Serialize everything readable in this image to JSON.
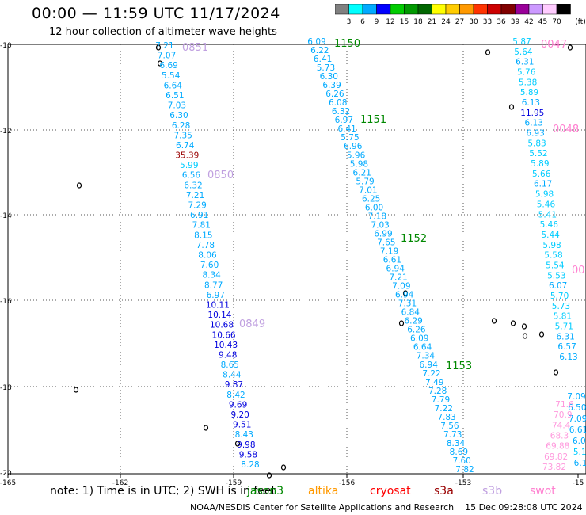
{
  "title": "00:00 — 11:59 UTC 11/17/2024",
  "subtitle": "12 hour collection of altimeter wave heights",
  "colorbar": {
    "unit": "(ft)",
    "labels": [
      "3",
      "6",
      "9",
      "12",
      "15",
      "18",
      "21",
      "24",
      "27",
      "30",
      "33",
      "36",
      "39",
      "42",
      "45",
      "70"
    ],
    "colors": [
      "#808080",
      "#00ffff",
      "#00aaff",
      "#0000ff",
      "#00cc00",
      "#009900",
      "#006600",
      "#ffff00",
      "#ffcc00",
      "#ff9900",
      "#ff3300",
      "#cc0000",
      "#800000",
      "#990099",
      "#cc99ff",
      "#ffccff",
      "#000000"
    ]
  },
  "axes": {
    "x_ticks": [
      "-165",
      "-162",
      "-159",
      "-156",
      "-153",
      "-15"
    ],
    "y_ticks": [
      "-10",
      "-12",
      "-14",
      "-16",
      "-18",
      "-20"
    ]
  },
  "passes": [
    {
      "label": "0851",
      "color": "#c0a0e0"
    },
    {
      "label": "0850",
      "color": "#c0a0e0"
    },
    {
      "label": "0849",
      "color": "#c0a0e0"
    },
    {
      "label": "1150",
      "color": "#008800"
    },
    {
      "label": "1151",
      "color": "#008800"
    },
    {
      "label": "1152",
      "color": "#008800"
    },
    {
      "label": "1153",
      "color": "#008800"
    },
    {
      "label": "0047",
      "color": "#ff80d0"
    },
    {
      "label": "0048",
      "color": "#ff80d0"
    },
    {
      "label": "00",
      "color": "#ff80d0"
    }
  ],
  "tracks": [
    {
      "name": "track-1",
      "values": [
        {
          "v": "7.21",
          "c": "#00aaff"
        },
        {
          "v": "7.07",
          "c": "#00aaff"
        },
        {
          "v": "6.69",
          "c": "#00aaff"
        },
        {
          "v": "5.54",
          "c": "#00aaff"
        },
        {
          "v": "6.64",
          "c": "#00aaff"
        },
        {
          "v": "6.51",
          "c": "#00aaff"
        },
        {
          "v": "7.03",
          "c": "#00aaff"
        },
        {
          "v": "6.30",
          "c": "#00aaff"
        },
        {
          "v": "6.28",
          "c": "#00aaff"
        },
        {
          "v": "7.35",
          "c": "#00aaff"
        },
        {
          "v": "6.74",
          "c": "#00aaff"
        },
        {
          "v": "35.39",
          "c": "#990000"
        },
        {
          "v": "5.99",
          "c": "#00ccff"
        },
        {
          "v": "6.56",
          "c": "#00aaff"
        },
        {
          "v": "6.32",
          "c": "#00aaff"
        },
        {
          "v": "7.21",
          "c": "#00aaff"
        },
        {
          "v": "7.29",
          "c": "#00aaff"
        },
        {
          "v": "6.91",
          "c": "#00aaff"
        },
        {
          "v": "7.81",
          "c": "#00aaff"
        },
        {
          "v": "8.15",
          "c": "#00aaff"
        },
        {
          "v": "7.78",
          "c": "#00aaff"
        },
        {
          "v": "8.06",
          "c": "#00aaff"
        },
        {
          "v": "7.60",
          "c": "#00aaff"
        },
        {
          "v": "8.34",
          "c": "#00aaff"
        },
        {
          "v": "8.77",
          "c": "#00aaff"
        },
        {
          "v": "6.97",
          "c": "#00aaff"
        },
        {
          "v": "10.11",
          "c": "#0000dd"
        },
        {
          "v": "10.14",
          "c": "#0000dd"
        },
        {
          "v": "10.68",
          "c": "#0000dd"
        },
        {
          "v": "10.66",
          "c": "#0000dd"
        },
        {
          "v": "10.43",
          "c": "#0000dd"
        },
        {
          "v": "9.48",
          "c": "#0000dd"
        },
        {
          "v": "8.65",
          "c": "#00aaff"
        },
        {
          "v": "8.44",
          "c": "#00aaff"
        },
        {
          "v": "9.87",
          "c": "#0000dd"
        },
        {
          "v": "8.42",
          "c": "#00aaff"
        },
        {
          "v": "9.69",
          "c": "#0000dd"
        },
        {
          "v": "9.20",
          "c": "#0000dd"
        },
        {
          "v": "9.51",
          "c": "#0000dd"
        },
        {
          "v": "8.43",
          "c": "#00aaff"
        },
        {
          "v": "9.98",
          "c": "#0000dd"
        },
        {
          "v": "9.58",
          "c": "#0000dd"
        },
        {
          "v": "8.28",
          "c": "#00aaff"
        }
      ]
    },
    {
      "name": "track-2",
      "values": [
        {
          "v": "6.09",
          "c": "#00aaff"
        },
        {
          "v": "6.22",
          "c": "#00aaff"
        },
        {
          "v": "6.41",
          "c": "#00aaff"
        },
        {
          "v": "5.73",
          "c": "#00aaff"
        },
        {
          "v": "6.30",
          "c": "#00aaff"
        },
        {
          "v": "6.39",
          "c": "#00aaff"
        },
        {
          "v": "6.26",
          "c": "#00aaff"
        },
        {
          "v": "6.08",
          "c": "#00aaff"
        },
        {
          "v": "6.32",
          "c": "#00aaff"
        },
        {
          "v": "6.97",
          "c": "#00aaff"
        },
        {
          "v": "6.41",
          "c": "#00aaff"
        },
        {
          "v": "5.75",
          "c": "#00aaff"
        },
        {
          "v": "6.96",
          "c": "#00aaff"
        },
        {
          "v": "5.96",
          "c": "#00aaff"
        },
        {
          "v": "5.98",
          "c": "#00aaff"
        },
        {
          "v": "6.21",
          "c": "#00aaff"
        },
        {
          "v": "5.79",
          "c": "#00aaff"
        },
        {
          "v": "7.01",
          "c": "#00aaff"
        },
        {
          "v": "6.25",
          "c": "#00aaff"
        },
        {
          "v": "6.00",
          "c": "#00aaff"
        },
        {
          "v": "7.18",
          "c": "#00aaff"
        },
        {
          "v": "7.03",
          "c": "#00aaff"
        },
        {
          "v": "6.99",
          "c": "#00aaff"
        },
        {
          "v": "7.65",
          "c": "#00aaff"
        },
        {
          "v": "7.19",
          "c": "#00aaff"
        },
        {
          "v": "6.61",
          "c": "#00aaff"
        },
        {
          "v": "6.94",
          "c": "#00aaff"
        },
        {
          "v": "7.21",
          "c": "#00aaff"
        },
        {
          "v": "7.09",
          "c": "#00aaff"
        },
        {
          "v": "6.94",
          "c": "#00aaff"
        },
        {
          "v": "7.31",
          "c": "#00aaff"
        },
        {
          "v": "6.84",
          "c": "#00aaff"
        },
        {
          "v": "6.29",
          "c": "#00aaff"
        },
        {
          "v": "6.26",
          "c": "#00aaff"
        },
        {
          "v": "6.09",
          "c": "#00aaff"
        },
        {
          "v": "6.64",
          "c": "#00aaff"
        },
        {
          "v": "7.34",
          "c": "#00aaff"
        },
        {
          "v": "6.94",
          "c": "#00aaff"
        },
        {
          "v": "7.22",
          "c": "#00aaff"
        },
        {
          "v": "7.49",
          "c": "#00aaff"
        },
        {
          "v": "7.28",
          "c": "#00aaff"
        },
        {
          "v": "7.79",
          "c": "#00aaff"
        },
        {
          "v": "7.22",
          "c": "#00aaff"
        },
        {
          "v": "7.83",
          "c": "#00aaff"
        },
        {
          "v": "7.56",
          "c": "#00aaff"
        },
        {
          "v": "7.73",
          "c": "#00aaff"
        },
        {
          "v": "8.34",
          "c": "#00aaff"
        },
        {
          "v": "8.69",
          "c": "#00aaff"
        },
        {
          "v": "7.60",
          "c": "#00aaff"
        },
        {
          "v": "7.82",
          "c": "#00aaff"
        }
      ]
    },
    {
      "name": "track-3",
      "values": [
        {
          "v": "5.87",
          "c": "#00ccff"
        },
        {
          "v": "5.64",
          "c": "#00ccff"
        },
        {
          "v": "6.31",
          "c": "#00aaff"
        },
        {
          "v": "5.76",
          "c": "#00ccff"
        },
        {
          "v": "5.38",
          "c": "#00ccff"
        },
        {
          "v": "5.89",
          "c": "#00ccff"
        },
        {
          "v": "6.13",
          "c": "#00aaff"
        },
        {
          "v": "11.95",
          "c": "#0000dd"
        },
        {
          "v": "6.13",
          "c": "#00aaff"
        },
        {
          "v": "6.93",
          "c": "#00aaff"
        },
        {
          "v": "5.83",
          "c": "#00ccff"
        },
        {
          "v": "5.52",
          "c": "#00ccff"
        },
        {
          "v": "5.89",
          "c": "#00ccff"
        },
        {
          "v": "5.66",
          "c": "#00ccff"
        },
        {
          "v": "6.17",
          "c": "#00aaff"
        },
        {
          "v": "5.98",
          "c": "#00ccff"
        },
        {
          "v": "5.46",
          "c": "#00ccff"
        },
        {
          "v": "5.41",
          "c": "#00ccff"
        },
        {
          "v": "5.46",
          "c": "#00ccff"
        },
        {
          "v": "5.44",
          "c": "#00ccff"
        },
        {
          "v": "5.98",
          "c": "#00ccff"
        },
        {
          "v": "5.58",
          "c": "#00ccff"
        },
        {
          "v": "5.54",
          "c": "#00ccff"
        },
        {
          "v": "5.53",
          "c": "#00ccff"
        },
        {
          "v": "6.07",
          "c": "#00aaff"
        },
        {
          "v": "5.70",
          "c": "#00ccff"
        },
        {
          "v": "5.73",
          "c": "#00ccff"
        },
        {
          "v": "5.81",
          "c": "#00ccff"
        },
        {
          "v": "5.71",
          "c": "#00ccff"
        },
        {
          "v": "6.31",
          "c": "#00aaff"
        },
        {
          "v": "6.57",
          "c": "#00aaff"
        },
        {
          "v": "6.13",
          "c": "#00aaff"
        }
      ]
    },
    {
      "name": "track-4",
      "values": [
        {
          "v": "7.09",
          "c": "#00aaff"
        },
        {
          "v": "6.50",
          "c": "#00aaff"
        },
        {
          "v": "7.09",
          "c": "#00aaff"
        },
        {
          "v": "6.61",
          "c": "#00aaff"
        },
        {
          "v": "6.0",
          "c": "#00aaff"
        },
        {
          "v": "5.1",
          "c": "#00ccff"
        },
        {
          "v": "6.1",
          "c": "#00aaff"
        }
      ]
    },
    {
      "name": "track-5",
      "values": [
        {
          "v": "71.6",
          "c": "#ff99dd"
        },
        {
          "v": "70.9",
          "c": "#ff99dd"
        },
        {
          "v": "74.4",
          "c": "#ff99dd"
        },
        {
          "v": "68.3",
          "c": "#ff99dd"
        },
        {
          "v": "69.88",
          "c": "#ff99dd"
        },
        {
          "v": "69.82",
          "c": "#ff99dd"
        },
        {
          "v": "73.82",
          "c": "#ff99dd"
        }
      ]
    }
  ],
  "note": "note: 1) Time is in UTC; 2) SWH is in feet",
  "satellites": [
    {
      "name": "jason3",
      "color": "#008800"
    },
    {
      "name": "altika",
      "color": "#ff9900"
    },
    {
      "name": "cryosat",
      "color": "#ff0000"
    },
    {
      "name": "s3a",
      "color": "#990000"
    },
    {
      "name": "s3b",
      "color": "#c0a0e0"
    },
    {
      "name": "swot",
      "color": "#ff80d0"
    }
  ],
  "footer": "NOAA/NESDIS Center for Satellite Applications and Research    15 Dec 09:28:08 UTC 2024"
}
